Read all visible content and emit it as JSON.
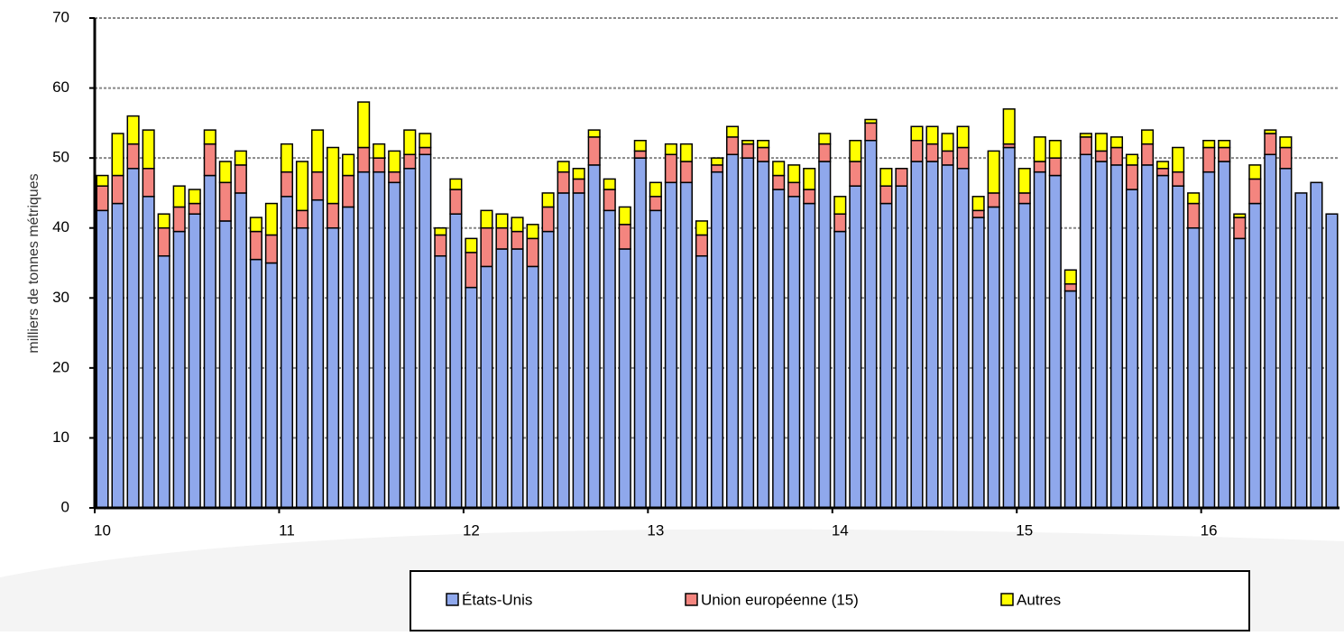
{
  "chart_data": {
    "type": "stacked_bar",
    "y_label": "milliers de tonnes métriques",
    "categories": [
      "10",
      null,
      null,
      null,
      null,
      null,
      null,
      null,
      null,
      null,
      null,
      null,
      "11",
      null,
      null,
      null,
      null,
      null,
      null,
      null,
      null,
      null,
      null,
      null,
      "12",
      null,
      null,
      null,
      null,
      null,
      null,
      null,
      null,
      null,
      null,
      null,
      "13",
      null,
      null,
      null,
      null,
      null,
      null,
      null,
      null,
      null,
      null,
      null,
      "14",
      null,
      null,
      null,
      null,
      null,
      null,
      null,
      null,
      null,
      null,
      null,
      "15",
      null,
      null,
      null,
      null,
      null,
      null,
      null,
      null,
      null,
      null,
      null,
      "16",
      null,
      null,
      null,
      null,
      null,
      null,
      null,
      null
    ],
    "series": [
      {
        "name": "États-Unis",
        "color": "#8fa8ec",
        "values": [
          42.5,
          43.5,
          48.5,
          44.5,
          36,
          39.5,
          42,
          47.5,
          41,
          45,
          35.5,
          35,
          44.5,
          40,
          44,
          40,
          43,
          48,
          48,
          46.5,
          48.5,
          50.5,
          36,
          42,
          31.5,
          34.5,
          37,
          37,
          34.5,
          39.5,
          45,
          45,
          49,
          42.5,
          37,
          50,
          42.5,
          46.5,
          46.5,
          36,
          48,
          50.5,
          50,
          49.5,
          45.5,
          44.5,
          43.5,
          49.5,
          39.5,
          46,
          52.5,
          43.5,
          46,
          49.5,
          49.5,
          49,
          48.5,
          41.5,
          43,
          51.5,
          43.5,
          48,
          47.5,
          31,
          50.5,
          49.5,
          49,
          45.5,
          49,
          47.5,
          46,
          40,
          48,
          49.5,
          38.5,
          43.5,
          50.5,
          48.5,
          45,
          46.5,
          42
        ]
      },
      {
        "name": "Union européenne (15)",
        "color": "#f4857f",
        "values": [
          3.5,
          4,
          3.5,
          4,
          4,
          3.5,
          1.5,
          4.5,
          5.5,
          4,
          4,
          4,
          3.5,
          2.5,
          4,
          3.5,
          4.5,
          3.5,
          2,
          1.5,
          2,
          1,
          3,
          3.5,
          5,
          5.5,
          3,
          2.5,
          4,
          3.5,
          3,
          2,
          4,
          3,
          3.5,
          1,
          2,
          4,
          3,
          3,
          1,
          2.5,
          2,
          2,
          2,
          2,
          2,
          2.5,
          2.5,
          3.5,
          2.5,
          2.5,
          2.5,
          3,
          2.5,
          2,
          3,
          1,
          2,
          0.5,
          1.5,
          1.5,
          2.5,
          1,
          2.5,
          1.5,
          2.5,
          3.5,
          3,
          1,
          2,
          3.5,
          3.5,
          2,
          3,
          3.5,
          3,
          3,
          0,
          0,
          0
        ]
      },
      {
        "name": "Autres",
        "color": "#ffff00",
        "values": [
          1.5,
          6,
          4,
          5.5,
          2,
          3,
          2,
          2,
          3,
          2,
          2,
          4.5,
          4,
          7,
          6,
          8,
          3,
          6.5,
          2,
          3,
          3.5,
          2,
          1,
          1.5,
          2,
          2.5,
          2,
          2,
          2,
          2,
          1.5,
          1.5,
          1,
          1.5,
          2.5,
          1.5,
          2,
          1.5,
          2.5,
          2,
          1,
          1.5,
          0.5,
          1,
          2,
          2.5,
          3,
          1.5,
          2.5,
          3,
          0.5,
          2.5,
          0,
          2,
          2.5,
          2.5,
          3,
          2,
          6,
          5,
          3.5,
          3.5,
          2.5,
          2,
          0.5,
          2.5,
          1.5,
          1.5,
          2,
          1,
          3.5,
          1.5,
          1,
          1,
          0.5,
          2,
          0.5,
          1.5,
          0,
          0,
          0
        ]
      }
    ],
    "ylim": [
      0,
      70
    ],
    "yticks": [
      0,
      10,
      20,
      30,
      40,
      50,
      60,
      70
    ],
    "grid": true,
    "legend": "bottom"
  }
}
